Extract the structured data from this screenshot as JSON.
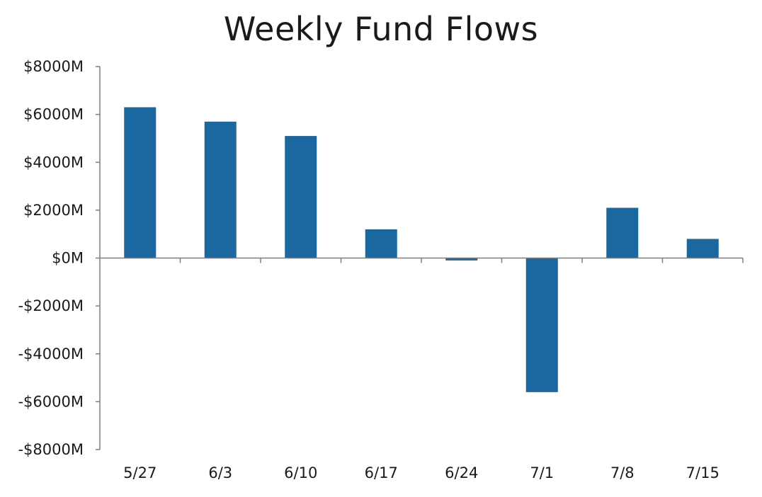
{
  "chart_data": {
    "type": "bar",
    "title": "Weekly Fund Flows",
    "xlabel": "",
    "ylabel": "",
    "categories": [
      "5/27",
      "6/3",
      "6/10",
      "6/17",
      "6/24",
      "7/1",
      "7/8",
      "7/15"
    ],
    "values": [
      6300,
      5700,
      5100,
      1200,
      -100,
      -5600,
      2100,
      800
    ],
    "unit_prefix": "$",
    "unit_suffix": "M",
    "ylim": [
      -8000,
      8000
    ],
    "yticks": [
      -8000,
      -6000,
      -4000,
      -2000,
      0,
      2000,
      4000,
      6000,
      8000
    ],
    "ytick_labels": [
      "-$8000M",
      "-$6000M",
      "-$4000M",
      "-$2000M",
      "$0M",
      "$2000M",
      "$4000M",
      "$6000M",
      "$8000M"
    ],
    "grid": false,
    "legend": "none",
    "bar_color": "#1b67a0",
    "axis_color": "#7f7f7f"
  }
}
